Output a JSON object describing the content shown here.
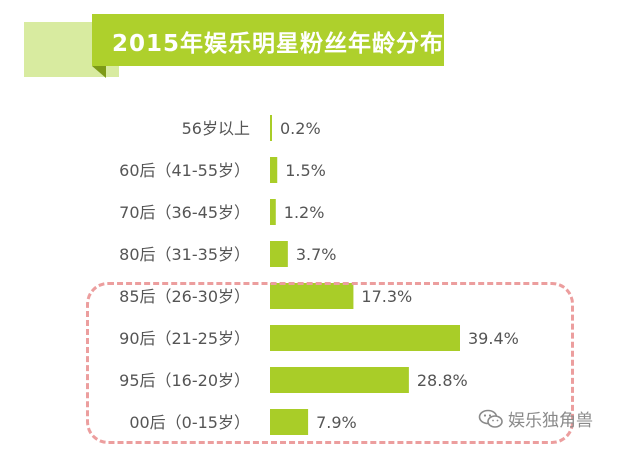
{
  "chart_data": {
    "type": "bar",
    "orientation": "horizontal",
    "title": "2015年娱乐明星粉丝年龄分布",
    "categories": [
      "56岁以上",
      "60后（41-55岁）",
      "70后（36-45岁）",
      "80后（31-35岁）",
      "85后（26-30岁）",
      "90后（21-25岁）",
      "95后（16-20岁）",
      "00后（0-15岁）"
    ],
    "values": [
      0.2,
      1.5,
      1.2,
      3.7,
      17.3,
      39.4,
      28.8,
      7.9
    ],
    "value_labels": [
      "0.2%",
      "1.5%",
      "1.2%",
      "3.7%",
      "17.3%",
      "39.4%",
      "28.8%",
      "7.9%"
    ],
    "unit": "%",
    "bar_color": "#a9cd28",
    "highlighted_categories": [
      "85后（26-30岁）",
      "90后（21-25岁）",
      "95后（16-20岁）",
      "00后（0-15岁）"
    ],
    "highlight_color": "#ec9e9e",
    "grid": false,
    "legend": "none"
  },
  "watermark": {
    "icon": "wechat-icon",
    "text": "娱乐独角兽"
  },
  "colors": {
    "title_band": "#aed02c",
    "title_strip": "#d8eba0",
    "label_text": "#555555"
  }
}
